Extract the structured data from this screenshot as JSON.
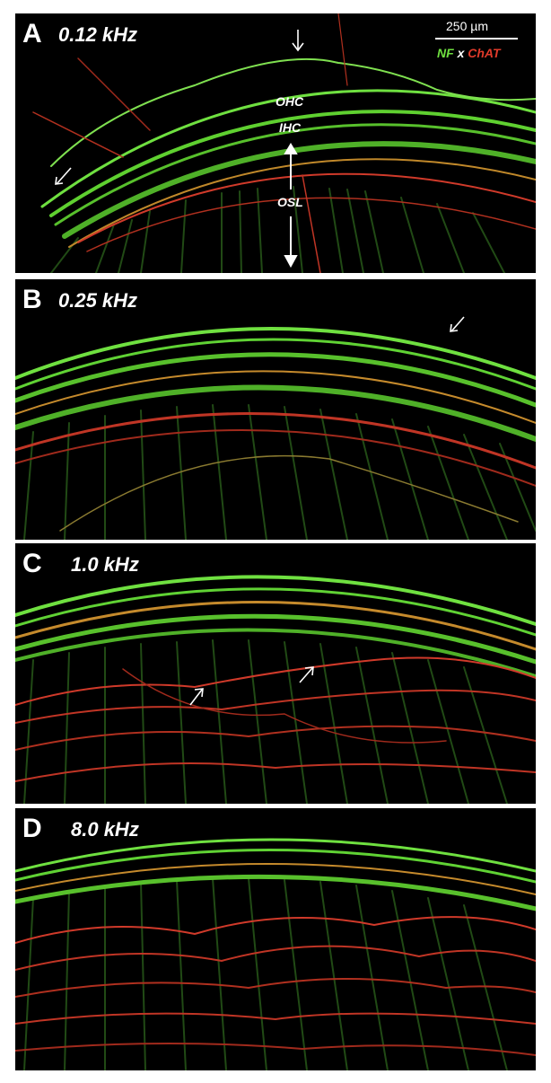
{
  "panels": [
    {
      "letter": "A",
      "frequency": "0.12 kHz"
    },
    {
      "letter": "B",
      "frequency": "0.25 kHz"
    },
    {
      "letter": "C",
      "frequency": "1.0 kHz"
    },
    {
      "letter": "D",
      "frequency": "8.0 kHz"
    }
  ],
  "scale_bar": {
    "label": "250 µm"
  },
  "legend": {
    "nf": "NF",
    "x": "x",
    "chat": "ChAT"
  },
  "structure_labels": {
    "ohc": "OHC",
    "ihc": "IHC",
    "osl": "OSL"
  },
  "colors": {
    "nf_green": "#6fe040",
    "chat_red": "#e03a2a",
    "background": "#000000"
  }
}
